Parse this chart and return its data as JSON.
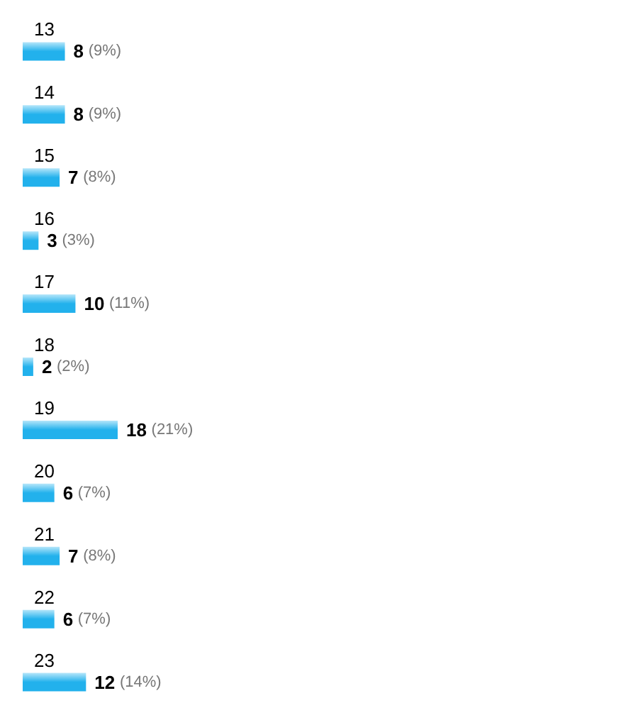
{
  "chart_data": {
    "type": "bar",
    "orientation": "horizontal",
    "categories": [
      "13",
      "14",
      "15",
      "16",
      "17",
      "18",
      "19",
      "20",
      "21",
      "22",
      "23"
    ],
    "values": [
      8,
      8,
      7,
      3,
      10,
      2,
      18,
      6,
      7,
      6,
      12
    ],
    "value_labels": [
      "8 (9%)",
      "8 (9%)",
      "7 (8%)",
      "3 (3%)",
      "10 (11%)",
      "2 (2%)",
      "18 (21%)",
      "6 (7%)",
      "7 (8%)",
      "6 (7%)",
      "12 (14%)"
    ],
    "color": "#22b1ec"
  }
}
